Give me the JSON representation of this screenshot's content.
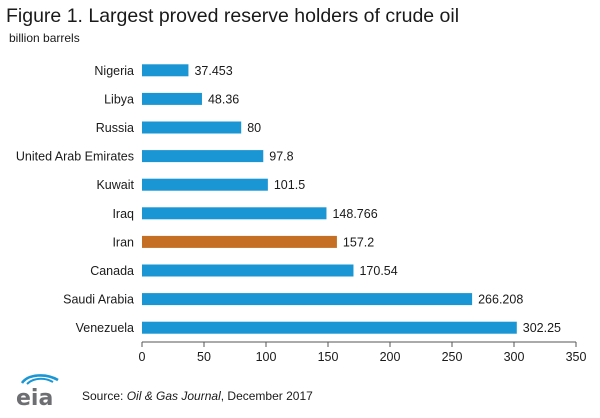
{
  "title": "Figure 1. Largest proved reserve holders of crude oil",
  "subtitle": "billion barrels",
  "source": {
    "prefix": "Source: ",
    "publication": "Oil & Gas Journal",
    "suffix": ", December 2017"
  },
  "logo": {
    "text": "eia",
    "icon": "eia-logo-icon"
  },
  "colors": {
    "default_bar": "#1996d3",
    "highlight_bar": "#c46f24",
    "axis": "#555555"
  },
  "chart_data": {
    "type": "bar",
    "orientation": "horizontal",
    "title": "Figure 1. Largest proved reserve holders of crude oil",
    "ylabel": "billion barrels",
    "categories": [
      "Nigeria",
      "Libya",
      "Russia",
      "United Arab Emirates",
      "Kuwait",
      "Iraq",
      "Iran",
      "Canada",
      "Saudi Arabia",
      "Venezuela"
    ],
    "values": [
      37.453,
      48.36,
      80,
      97.8,
      101.5,
      148.766,
      157.2,
      170.54,
      266.208,
      302.25
    ],
    "value_labels": [
      "37.453",
      "48.36",
      "80",
      "97.8",
      "101.5",
      "148.766",
      "157.2",
      "170.54",
      "266.208",
      "302.25"
    ],
    "highlight": "Iran",
    "xlim": [
      0,
      350
    ],
    "xticks": [
      0,
      50,
      100,
      150,
      200,
      250,
      300,
      350
    ],
    "grid": false,
    "legend": "none"
  }
}
